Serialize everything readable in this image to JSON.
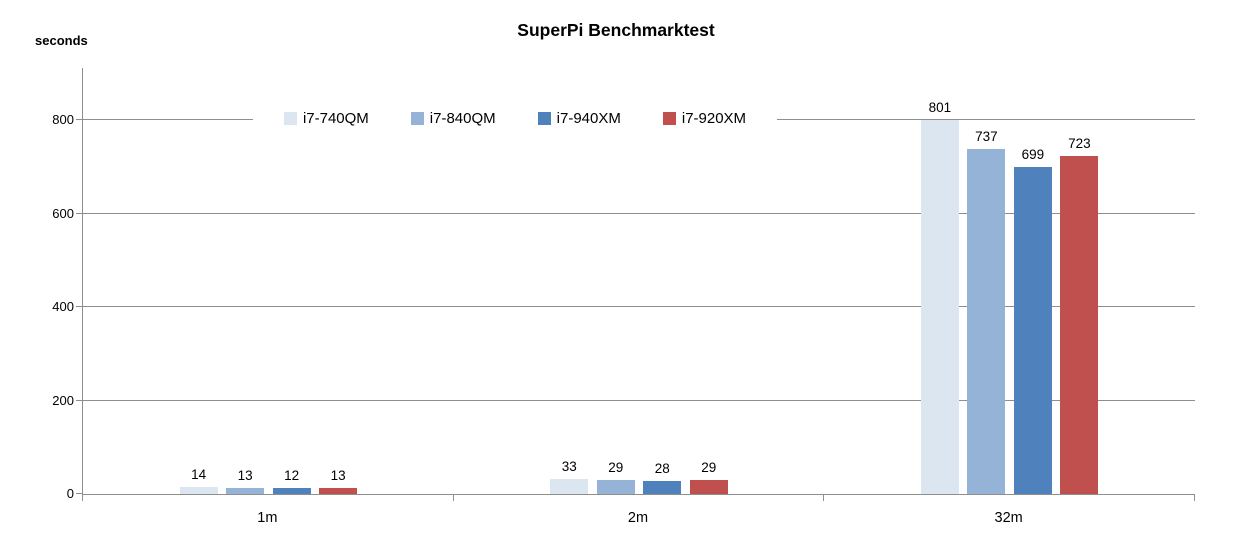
{
  "chart_data": {
    "type": "bar",
    "title": "SuperPi Benchmarktest",
    "unit_label": "seconds",
    "categories": [
      "1m",
      "2m",
      "32m"
    ],
    "series": [
      {
        "name": "i7-740QM",
        "color": "#dce6f1",
        "values": [
          14,
          33,
          801
        ]
      },
      {
        "name": "i7-840QM",
        "color": "#95b3d7",
        "values": [
          13,
          29,
          737
        ]
      },
      {
        "name": "i7-940XM",
        "color": "#4f81bd",
        "values": [
          12,
          28,
          699
        ]
      },
      {
        "name": "i7-920XM",
        "color": "#c0504d",
        "values": [
          13,
          29,
          723
        ]
      }
    ],
    "y_ticks": [
      0,
      200,
      400,
      600,
      800
    ],
    "ylim": [
      0,
      900
    ],
    "grid": true,
    "data_labels": true,
    "legend_position": "top-center-inside",
    "axis_color": "#8e8e8e",
    "grid_color": "#8e8e8e",
    "text_color": "#000000",
    "background_color": "#ffffff"
  }
}
